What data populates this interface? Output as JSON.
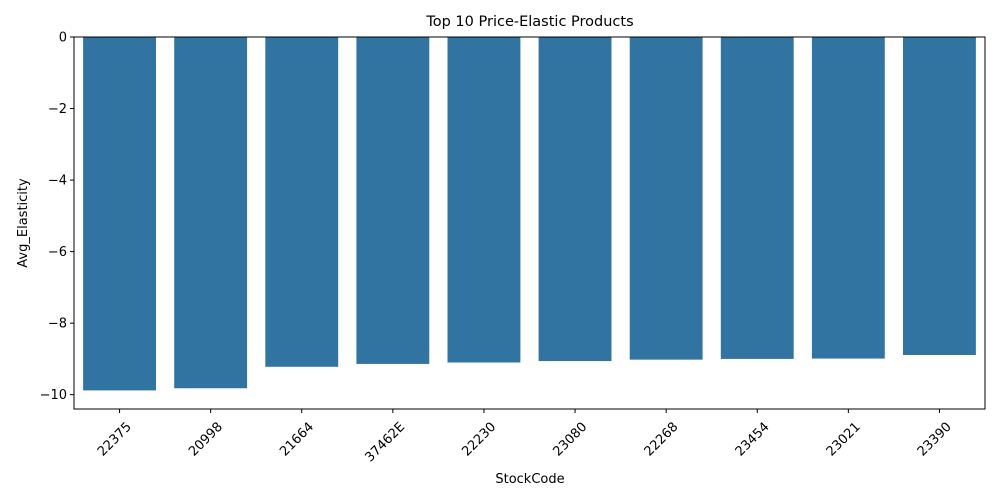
{
  "chart_data": {
    "type": "bar",
    "title": "Top 10 Price-Elastic Products",
    "xlabel": "StockCode",
    "ylabel": "Avg_Elasticity",
    "categories": [
      "22375",
      "20998",
      "21664",
      "37462E",
      "22230",
      "23080",
      "22268",
      "23454",
      "23021",
      "23390"
    ],
    "values": [
      -9.88,
      -9.82,
      -9.22,
      -9.14,
      -9.1,
      -9.06,
      -9.02,
      -9.0,
      -8.99,
      -8.89
    ],
    "ylim": [
      -10.4,
      0
    ],
    "yticks": [
      0,
      -2,
      -4,
      -6,
      -8,
      -10
    ],
    "grid": false,
    "legend": "none",
    "bar_color": "#3274a1"
  }
}
